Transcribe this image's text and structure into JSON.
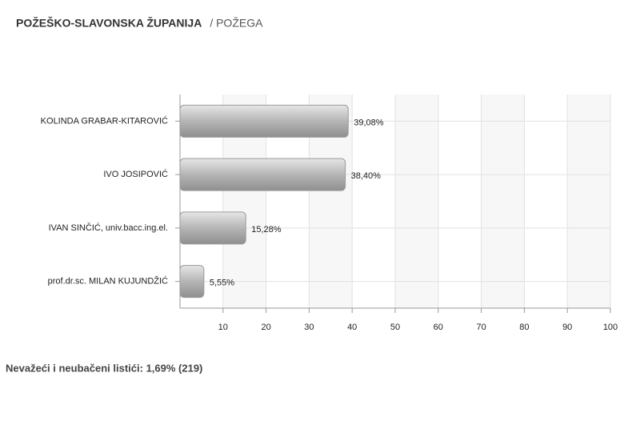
{
  "chart_data": {
    "type": "bar",
    "orientation": "horizontal",
    "title": "POŽEŠKO-SLAVONSKA ŽUPANIJA",
    "subtitle": "/ POŽEGA",
    "categories": [
      "KOLINDA GRABAR-KITAROVIĆ",
      "IVO JOSIPOVIĆ",
      "IVAN SINČIĆ, univ.bacc.ing.el.",
      "prof.dr.sc. MILAN KUJUNDŽIĆ"
    ],
    "values": [
      39.08,
      38.4,
      15.28,
      5.55
    ],
    "value_labels": [
      "39,08%",
      "38,40%",
      "15,28%",
      "5,55%"
    ],
    "color": "#b5b5b5",
    "xlim": [
      0,
      100
    ],
    "xticks": [
      10,
      20,
      30,
      40,
      50,
      60,
      70,
      80,
      90,
      100
    ],
    "grid": true,
    "note": "Nevažeći i neubačeni listići: 1,69% (219)"
  }
}
